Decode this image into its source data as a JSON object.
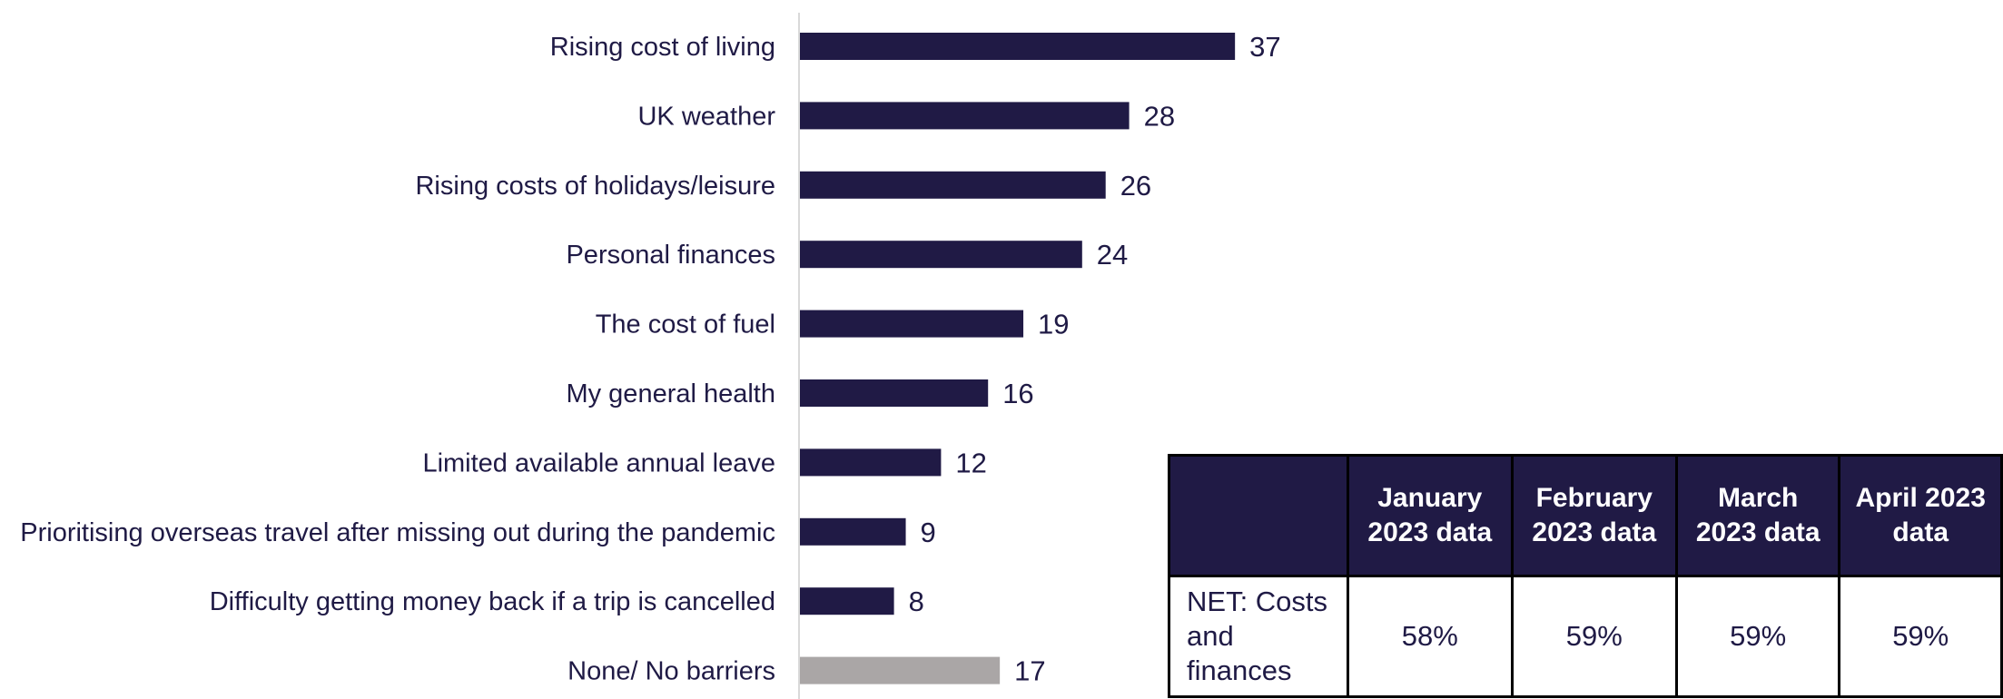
{
  "chart_data": {
    "type": "bar",
    "orientation": "horizontal",
    "categories": [
      "Rising cost of living",
      "UK weather",
      "Rising costs of holidays/leisure",
      "Personal finances",
      "The cost of fuel",
      "My general health",
      "Limited available annual leave",
      "Prioritising overseas travel after missing out during the pandemic",
      "Difficulty getting money back if a trip is cancelled",
      "None/ No barriers"
    ],
    "values": [
      37,
      28,
      26,
      24,
      19,
      16,
      12,
      9,
      8,
      17
    ],
    "bar_colors": [
      "#201a45",
      "#201a45",
      "#201a45",
      "#201a45",
      "#201a45",
      "#201a45",
      "#201a45",
      "#201a45",
      "#201a45",
      "#aaa6a6"
    ],
    "xlim": [
      0,
      100
    ],
    "grid": false
  },
  "table": {
    "headers": [
      "",
      "January 2023 data",
      "February 2023 data",
      "March 2023 data",
      "April 2023 data"
    ],
    "rows": [
      {
        "label": "NET: Costs and finances",
        "cells": [
          "58%",
          "59%",
          "59%",
          "59%"
        ]
      }
    ]
  }
}
